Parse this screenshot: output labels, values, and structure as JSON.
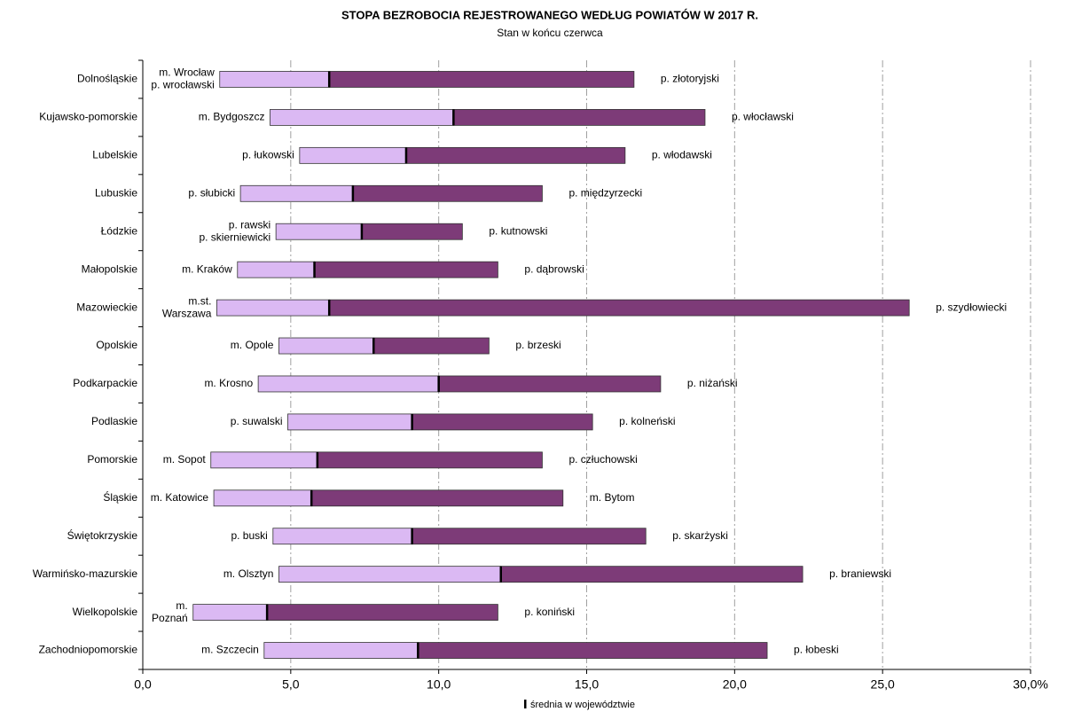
{
  "chart_data": {
    "type": "range_bar",
    "title": "STOPA BEZROBOCIA  REJESTROWANEGO  WEDŁUG  POWIATÓW  W  2017 R.",
    "subtitle": "Stan w końcu czerwca",
    "legend_label": "średnia w województwie",
    "categories": [
      "Dolnośląskie",
      "Kujawsko-pomorskie",
      "Lubelskie",
      "Lubuskie",
      "Łódzkie",
      "Małopolskie",
      "Mazowieckie",
      "Opolskie",
      "Podkarpackie",
      "Podlaskie",
      "Pomorskie",
      "Śląskie",
      "Świętokrzyskie",
      "Warmińsko-mazurskie",
      "Wielkopolskie",
      "Zachodniopomorskie"
    ],
    "min": [
      2.6,
      4.3,
      5.3,
      3.3,
      4.5,
      3.2,
      2.5,
      4.6,
      3.9,
      4.9,
      2.3,
      2.4,
      4.4,
      4.6,
      1.7,
      4.1
    ],
    "mean": [
      6.3,
      10.5,
      8.9,
      7.1,
      7.4,
      5.8,
      6.3,
      7.8,
      10.0,
      9.1,
      5.9,
      5.7,
      9.1,
      12.1,
      4.2,
      9.3
    ],
    "max": [
      16.6,
      19.0,
      16.3,
      13.5,
      10.8,
      12.0,
      25.9,
      11.7,
      17.5,
      15.2,
      13.5,
      14.2,
      17.0,
      22.3,
      12.0,
      21.1
    ],
    "min_labels": [
      [
        "m. Wrocław",
        "p. wrocławski"
      ],
      [
        "m. Bydgoszcz"
      ],
      [
        "p. łukowski"
      ],
      [
        "p. słubicki"
      ],
      [
        "p. rawski",
        "p. skierniewicki"
      ],
      [
        "m. Kraków"
      ],
      [
        "m.st.",
        "Warszawa"
      ],
      [
        "m. Opole"
      ],
      [
        "m. Krosno"
      ],
      [
        "p. suwalski"
      ],
      [
        "m. Sopot"
      ],
      [
        "m. Katowice"
      ],
      [
        "p. buski"
      ],
      [
        "m. Olsztyn"
      ],
      [
        "m.",
        "Poznań"
      ],
      [
        "m. Szczecin"
      ]
    ],
    "max_labels": [
      "p. złotoryjski",
      "p. włocławski",
      "p. włodawski",
      "p. międzyrzecki",
      "p. kutnowski",
      "p. dąbrowski",
      "p. szydłowiecki",
      "p. brzeski",
      "p. niżański",
      "p. kolneński",
      "p. człuchowski",
      "m. Bytom",
      "p. skarżyski",
      "p. braniewski",
      "p. koniński",
      "p. łobeski"
    ],
    "min_color": "#dbb9f3",
    "max_color": "#7d3b78",
    "mean_color": "#000000",
    "xlim": [
      0,
      30
    ],
    "xticks": [
      {
        "value": 0,
        "label": "0,0"
      },
      {
        "value": 5,
        "label": "5,0"
      },
      {
        "value": 10,
        "label": "10,0"
      },
      {
        "value": 15,
        "label": "15,0"
      },
      {
        "value": 20,
        "label": "20,0"
      },
      {
        "value": 25,
        "label": "25,0"
      },
      {
        "value": 30,
        "label": "30,0%"
      }
    ],
    "grid": true
  }
}
